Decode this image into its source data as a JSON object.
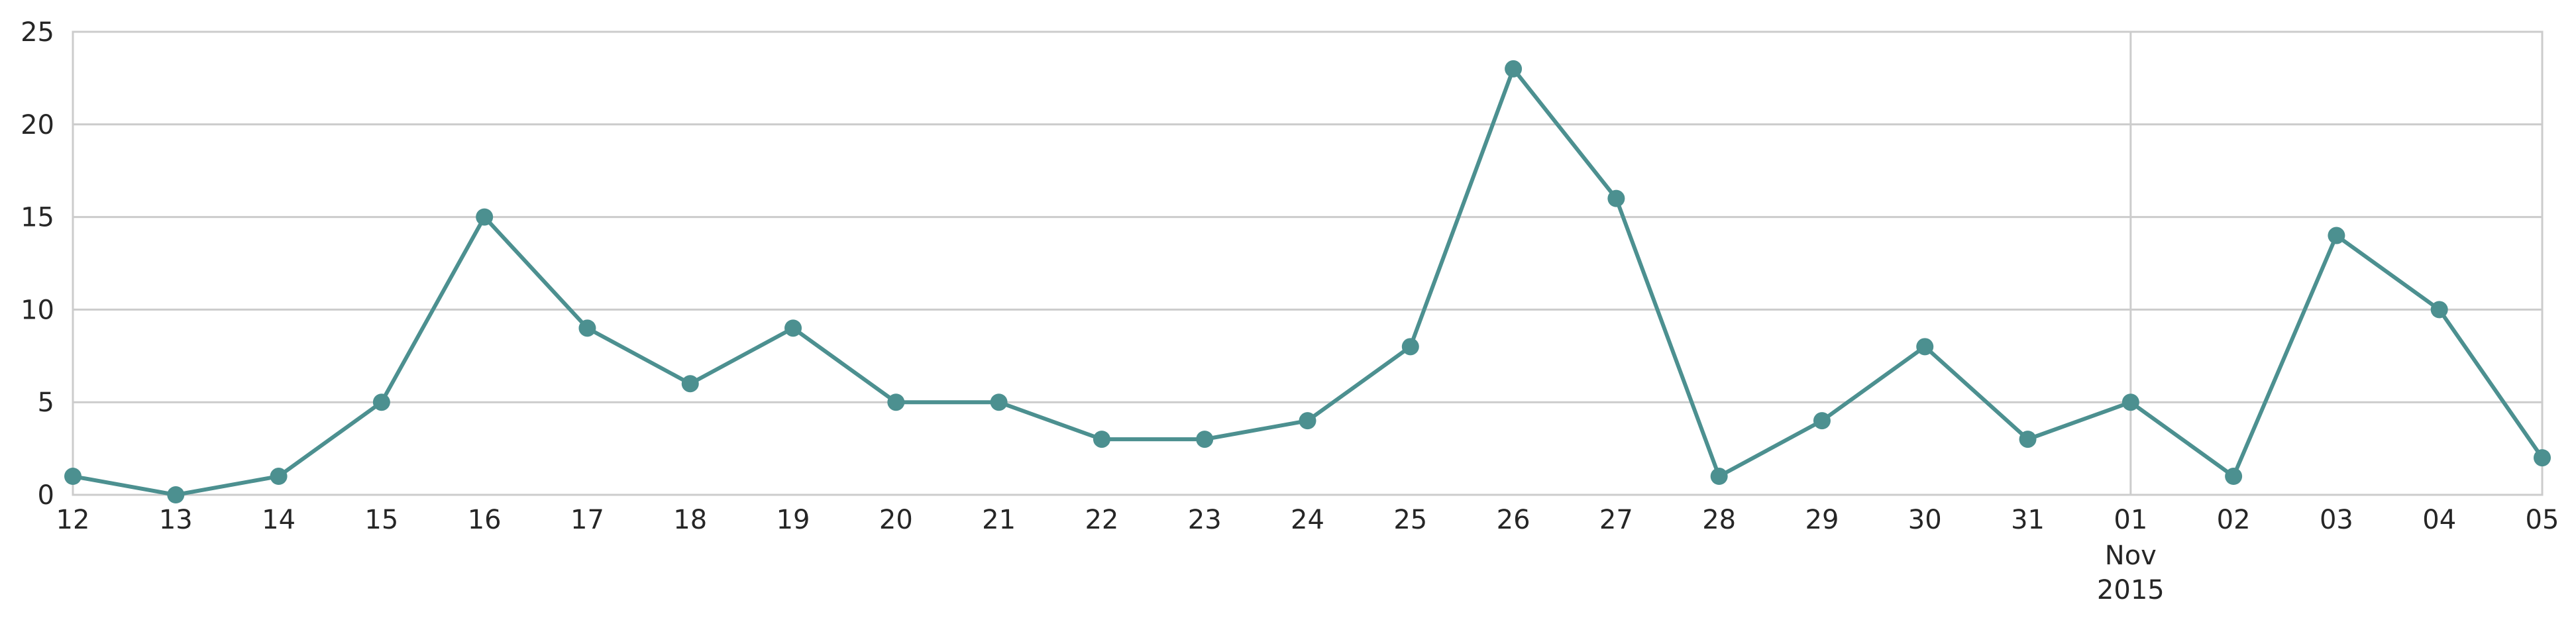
{
  "chart_data": {
    "type": "line",
    "title": "",
    "xlabel": "",
    "ylabel": "",
    "x": [
      "2015-10-12",
      "2015-10-13",
      "2015-10-14",
      "2015-10-15",
      "2015-10-16",
      "2015-10-17",
      "2015-10-18",
      "2015-10-19",
      "2015-10-20",
      "2015-10-21",
      "2015-10-22",
      "2015-10-23",
      "2015-10-24",
      "2015-10-25",
      "2015-10-26",
      "2015-10-27",
      "2015-10-28",
      "2015-10-29",
      "2015-10-30",
      "2015-10-31",
      "2015-11-01",
      "2015-11-02",
      "2015-11-03",
      "2015-11-04",
      "2015-11-05"
    ],
    "x_tick_labels": [
      {
        "text": "12"
      },
      {
        "text": "13"
      },
      {
        "text": "14"
      },
      {
        "text": "15"
      },
      {
        "text": "16"
      },
      {
        "text": "17"
      },
      {
        "text": "18"
      },
      {
        "text": "19"
      },
      {
        "text": "20"
      },
      {
        "text": "21"
      },
      {
        "text": "22"
      },
      {
        "text": "23"
      },
      {
        "text": "24"
      },
      {
        "text": "25"
      },
      {
        "text": "26"
      },
      {
        "text": "27"
      },
      {
        "text": "28"
      },
      {
        "text": "29"
      },
      {
        "text": "30"
      },
      {
        "text": "31"
      },
      {
        "text": "01",
        "sub1": "Nov",
        "sub2": "2015"
      },
      {
        "text": "02"
      },
      {
        "text": "03"
      },
      {
        "text": "04"
      },
      {
        "text": "05"
      }
    ],
    "series": [
      {
        "values": [
          1,
          0,
          1,
          5,
          15,
          9,
          6,
          9,
          5,
          5,
          3,
          3,
          4,
          8,
          23,
          16,
          1,
          4,
          8,
          3,
          5,
          1,
          14,
          10,
          2
        ],
        "color": "#4c9090"
      }
    ],
    "ylim": [
      0,
      25
    ],
    "yticks": [
      0,
      5,
      10,
      15,
      20,
      25
    ],
    "y_tick_labels": [
      "0",
      "5",
      "10",
      "15",
      "20",
      "25"
    ],
    "grid": "horizontal gridlines plus vertical gridline at 01 Nov",
    "legend": "none"
  }
}
